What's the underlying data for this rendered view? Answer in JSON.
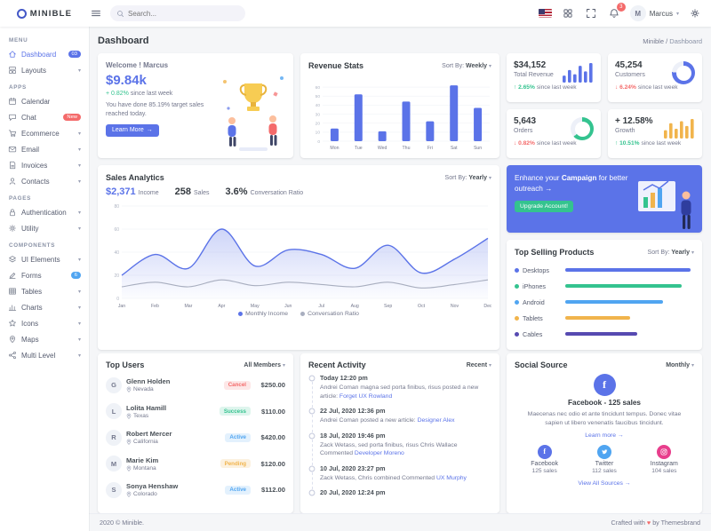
{
  "colors": {
    "primary": "#5b73e8",
    "success": "#34c38f",
    "info": "#50a5f1",
    "warning": "#f1b44c",
    "danger": "#f46a6a",
    "purple": "#564ab1"
  },
  "icons": {
    "caret": "▾",
    "arrow_right": "→",
    "heart": "♥"
  },
  "ui": {
    "sort_by_label": "Sort By:"
  },
  "topbar": {
    "brand": "MINIBLE",
    "search_placeholder": "Search...",
    "notification_count": "3",
    "user_name": "Marcus",
    "user_initial": "M"
  },
  "sidebar": {
    "sections": [
      {
        "title": "MENU",
        "items": [
          {
            "label": "Dashboard",
            "badge": "03"
          },
          {
            "label": "Layouts"
          }
        ]
      },
      {
        "title": "APPS",
        "items": [
          {
            "label": "Calendar"
          },
          {
            "label": "Chat",
            "badge": "New"
          },
          {
            "label": "Ecommerce"
          },
          {
            "label": "Email"
          },
          {
            "label": "Invoices"
          },
          {
            "label": "Contacts"
          }
        ]
      },
      {
        "title": "PAGES",
        "items": [
          {
            "label": "Authentication"
          },
          {
            "label": "Utility"
          }
        ]
      },
      {
        "title": "COMPONENTS",
        "items": [
          {
            "label": "UI Elements"
          },
          {
            "label": "Forms",
            "badge": "6"
          },
          {
            "label": "Tables"
          },
          {
            "label": "Charts"
          },
          {
            "label": "Icons"
          },
          {
            "label": "Maps"
          },
          {
            "label": "Multi Level"
          }
        ]
      }
    ]
  },
  "page": {
    "title": "Dashboard",
    "breadcrumb_root": "Minible",
    "breadcrumb_sep": "/",
    "breadcrumb_current": "Dashboard"
  },
  "welcome": {
    "greeting": "Welcome ! Marcus",
    "value": "$9.84k",
    "delta": "+ 0.82%",
    "caption": "since last week",
    "message": "You have done 85.19% target sales reached today.",
    "button_label": "Learn More"
  },
  "stats": [
    {
      "value": "$34,152",
      "label": "Total Revenue",
      "delta": "↑ 2.65%",
      "delta_color": "success",
      "caption": "since last week"
    },
    {
      "value": "45,254",
      "label": "Customers",
      "delta": "↓ 6.24%",
      "delta_color": "danger",
      "caption": "since last week"
    },
    {
      "value": "5,643",
      "label": "Orders",
      "delta": "↓ 0.82%",
      "delta_color": "danger",
      "caption": "since last week"
    },
    {
      "value": "+ 12.58%",
      "label": "Growth",
      "delta": "↑ 10.51%",
      "delta_color": "success",
      "caption": "since last week"
    }
  ],
  "sales_analytics": {
    "stats": [
      {
        "value": "$2,371",
        "label": "Income"
      },
      {
        "value": "258",
        "label": "Sales"
      },
      {
        "value": "3.6%",
        "label": "Conversation Ratio"
      }
    ]
  },
  "campaign": {
    "text_before": "Enhance your",
    "highlight": "Campaign",
    "text_after": "for better outreach",
    "button_label": "Upgrade Account!"
  },
  "top_users": {
    "title": "Top Users",
    "filter": "All Members",
    "rows": [
      {
        "initials": "G",
        "name": "Glenn Holden",
        "location": "Nevada",
        "status": "Cancel",
        "status_color": "danger",
        "amount": "$250.00"
      },
      {
        "initials": "L",
        "name": "Lolita Hamill",
        "location": "Texas",
        "status": "Success",
        "status_color": "success",
        "amount": "$110.00"
      },
      {
        "initials": "R",
        "name": "Robert Mercer",
        "location": "California",
        "status": "Active",
        "status_color": "info",
        "amount": "$420.00"
      },
      {
        "initials": "M",
        "name": "Marie Kim",
        "location": "Montana",
        "status": "Pending",
        "status_color": "warning",
        "amount": "$120.00"
      },
      {
        "initials": "S",
        "name": "Sonya Henshaw",
        "location": "Colorado",
        "status": "Active",
        "status_color": "info",
        "amount": "$112.00"
      }
    ]
  },
  "recent_activity": {
    "title": "Recent Activity",
    "filter": "Recent",
    "items": [
      {
        "date": "Today 12:20 pm",
        "text": "Andrei Coman magna sed porta finibus, risus posted a new article:",
        "link": "Forget UX Rowland"
      },
      {
        "date": "22 Jul, 2020 12:36 pm",
        "text": "Andrei Coman posted a new article:",
        "link": "Designer Alex"
      },
      {
        "date": "18 Jul, 2020 19:46 pm",
        "text": "Zack Wetass, sed porta finibus, risus Chris Wallace Commented",
        "link": "Developer Moreno"
      },
      {
        "date": "10 Jul, 2020 23:27 pm",
        "text": "Zack Wetass, Chris combined Commented",
        "link": "UX Murphy"
      },
      {
        "date": "20 Jul, 2020 12:24 pm",
        "text": "",
        "link": ""
      }
    ]
  },
  "social_source": {
    "title": "Social Source",
    "filter": "Monthly",
    "headline_name": "Facebook",
    "headline_sep": "-",
    "headline_sales": "125 sales",
    "description": "Maecenas nec odio et ante tincidunt tempus. Donec vitae sapien ut libero venenatis faucibus tincidunt.",
    "learn_more": "Learn more",
    "view_all": "View All Sources",
    "sources": [
      {
        "name": "Facebook",
        "sales": "125 sales",
        "color": "#5b73e8"
      },
      {
        "name": "Twitter",
        "sales": "112 sales",
        "color": "#50a5f1"
      },
      {
        "name": "Instagram",
        "sales": "104 sales",
        "color": "#e83e8c"
      }
    ]
  },
  "footer": {
    "left": "2020 © Minible.",
    "right_before": "Crafted with",
    "right_after": "by Themesbrand"
  },
  "chart_data": [
    {
      "id": "revenue_stats",
      "type": "bar",
      "title": "Revenue Stats",
      "sort_by": "Weekly",
      "categories": [
        "Mon",
        "Tue",
        "Wed",
        "Thu",
        "Fri",
        "Sat",
        "Sun"
      ],
      "values": [
        14,
        52,
        11,
        44,
        22,
        62,
        37
      ],
      "ylim": [
        0,
        70
      ],
      "yticks": [
        0,
        10,
        20,
        30,
        40,
        50,
        60
      ],
      "color": "#5b73e8",
      "grid": true,
      "xlabel": "",
      "ylabel": ""
    },
    {
      "id": "sales_analytics",
      "type": "area",
      "title": "Sales Analytics",
      "sort_by": "Yearly",
      "x": [
        "Jan",
        "Feb",
        "Mar",
        "Apr",
        "May",
        "Jun",
        "Jul",
        "Aug",
        "Sep",
        "Oct",
        "Nov",
        "Dec"
      ],
      "series": [
        {
          "name": "Monthly Income",
          "color": "#5b73e8",
          "fill": true,
          "values": [
            20,
            38,
            26,
            60,
            28,
            42,
            38,
            26,
            46,
            22,
            34,
            52
          ]
        },
        {
          "name": "Conversation Ratio",
          "color": "#a8aebf",
          "fill": false,
          "values": [
            10,
            14,
            10,
            16,
            11,
            14,
            12,
            10,
            14,
            9,
            12,
            16
          ]
        }
      ],
      "ylim": [
        0,
        80
      ],
      "yticks": [
        0,
        20,
        40,
        60,
        80
      ],
      "legend_position": "bottom",
      "grid": true
    },
    {
      "id": "total_revenue_spark",
      "type": "bar",
      "values": [
        25,
        45,
        30,
        60,
        40,
        70
      ],
      "color": "#5b73e8"
    },
    {
      "id": "growth_spark",
      "type": "bar",
      "values": [
        30,
        55,
        35,
        62,
        45,
        70
      ],
      "color": "#f1b44c"
    },
    {
      "id": "customers_radial",
      "type": "radial",
      "percent": 76,
      "color": "#5b73e8",
      "track": "#edf0f8"
    },
    {
      "id": "orders_radial",
      "type": "radial",
      "percent": 63,
      "color": "#34c38f",
      "track": "#edf0f8"
    },
    {
      "id": "top_selling_products",
      "type": "bar",
      "orientation": "horizontal",
      "title": "Top Selling Products",
      "sort_by": "Yearly",
      "categories": [
        "Desktops",
        "iPhones",
        "Android",
        "Tablets",
        "Cables"
      ],
      "values": [
        97,
        90,
        76,
        50,
        56
      ],
      "colors": [
        "#5b73e8",
        "#34c38f",
        "#50a5f1",
        "#f1b44c",
        "#564ab1"
      ]
    }
  ]
}
